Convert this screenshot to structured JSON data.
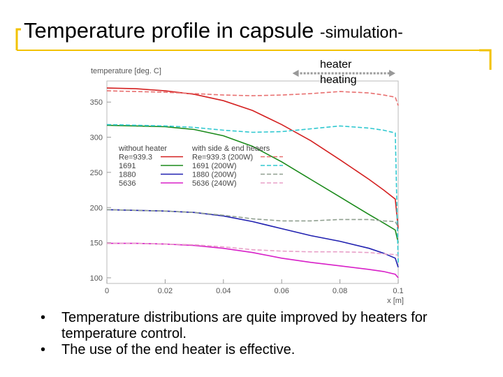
{
  "slide": {
    "title": "Temperature profile  in capsule",
    "title_suffix": "-simulation-",
    "bullets": [
      "Temperature distributions are quite improved by heaters for temperature control.",
      "The use of the end heater is effective."
    ],
    "bullet_glyph": "•",
    "accent_color": "#f2c200"
  },
  "chart_data": {
    "type": "line",
    "ylabel": "temperature [deg. C]",
    "xlabel": "x [m]",
    "xlim": [
      0,
      0.1
    ],
    "ylim": [
      92,
      380
    ],
    "xticks": [
      "0",
      "0.02",
      "0.04",
      "0.06",
      "0.08",
      "0.1"
    ],
    "xtick_values": [
      0,
      0.02,
      0.04,
      0.06,
      0.08,
      0.1
    ],
    "yticks": [
      "350",
      "300",
      "250",
      "200",
      "150",
      "100"
    ],
    "ytick_values": [
      350,
      300,
      250,
      200,
      150,
      100
    ],
    "annotation": {
      "line1": "heater",
      "line2": "heating",
      "x_range": [
        0.068,
        0.1
      ]
    },
    "legend": {
      "col1_header": "without heater",
      "col2_header": "with side & end heaers",
      "rows": [
        {
          "left": "Re=939.3",
          "right": "Re=939.3 (200W)",
          "color": "#d42020",
          "dash_color": "#e87070"
        },
        {
          "left": "1691",
          "right": "1691 (200W)",
          "color": "#1a8a1a",
          "dash_color": "#30c8d0"
        },
        {
          "left": "1880",
          "right": "1880 (200W)",
          "color": "#2020b0",
          "dash_color": "#90a090"
        },
        {
          "left": "5636",
          "right": "5636 (240W)",
          "color": "#d820c8",
          "dash_color": "#e8a0c8"
        }
      ]
    },
    "series": [
      {
        "name": "Re=939.3",
        "color": "#d42020",
        "dashed": false,
        "x": [
          0,
          0.01,
          0.02,
          0.03,
          0.04,
          0.05,
          0.06,
          0.07,
          0.08,
          0.09,
          0.095,
          0.099,
          0.1
        ],
        "y": [
          370,
          369,
          366,
          361,
          352,
          338,
          318,
          295,
          268,
          240,
          225,
          212,
          170
        ]
      },
      {
        "name": "1691",
        "color": "#1a8a1a",
        "dashed": false,
        "x": [
          0,
          0.01,
          0.02,
          0.03,
          0.04,
          0.05,
          0.06,
          0.07,
          0.08,
          0.09,
          0.095,
          0.099,
          0.1
        ],
        "y": [
          317,
          316,
          315,
          311,
          302,
          287,
          265,
          240,
          215,
          190,
          178,
          168,
          150
        ]
      },
      {
        "name": "1880",
        "color": "#2020b0",
        "dashed": false,
        "x": [
          0,
          0.01,
          0.02,
          0.03,
          0.04,
          0.05,
          0.06,
          0.07,
          0.08,
          0.09,
          0.095,
          0.099,
          0.1
        ],
        "y": [
          197,
          196,
          195,
          193,
          188,
          180,
          170,
          160,
          152,
          142,
          135,
          128,
          115
        ]
      },
      {
        "name": "5636",
        "color": "#d820c8",
        "dashed": false,
        "x": [
          0,
          0.01,
          0.02,
          0.03,
          0.04,
          0.05,
          0.06,
          0.07,
          0.08,
          0.09,
          0.095,
          0.099,
          0.1
        ],
        "y": [
          149,
          149,
          148,
          146,
          142,
          136,
          128,
          122,
          117,
          112,
          109,
          105,
          100
        ]
      },
      {
        "name": "Re=939.3 (200W)",
        "color": "#e87070",
        "dashed": true,
        "x": [
          0,
          0.01,
          0.02,
          0.03,
          0.04,
          0.05,
          0.06,
          0.07,
          0.08,
          0.09,
          0.095,
          0.099,
          0.1
        ],
        "y": [
          366,
          365,
          364,
          362,
          360,
          359,
          360,
          362,
          365,
          363,
          360,
          357,
          345
        ]
      },
      {
        "name": "1691 (200W)",
        "color": "#30c8d0",
        "dashed": true,
        "x": [
          0,
          0.01,
          0.02,
          0.03,
          0.04,
          0.05,
          0.06,
          0.07,
          0.08,
          0.09,
          0.095,
          0.099,
          0.1
        ],
        "y": [
          318,
          317,
          316,
          314,
          310,
          307,
          308,
          312,
          316,
          313,
          310,
          306,
          120
        ]
      },
      {
        "name": "1880 (200W)",
        "color": "#90a090",
        "dashed": true,
        "x": [
          0,
          0.01,
          0.02,
          0.03,
          0.04,
          0.05,
          0.06,
          0.07,
          0.08,
          0.09,
          0.095,
          0.099,
          0.1
        ],
        "y": [
          197,
          196,
          195,
          193,
          189,
          184,
          181,
          181,
          183,
          183,
          181,
          180,
          172
        ]
      },
      {
        "name": "5636 (240W)",
        "color": "#e8a0c8",
        "dashed": true,
        "x": [
          0,
          0.01,
          0.02,
          0.03,
          0.04,
          0.05,
          0.06,
          0.07,
          0.08,
          0.09,
          0.095,
          0.099,
          0.1
        ],
        "y": [
          149,
          149,
          148,
          147,
          144,
          140,
          138,
          137,
          137,
          136,
          134,
          133,
          132
        ]
      }
    ]
  }
}
